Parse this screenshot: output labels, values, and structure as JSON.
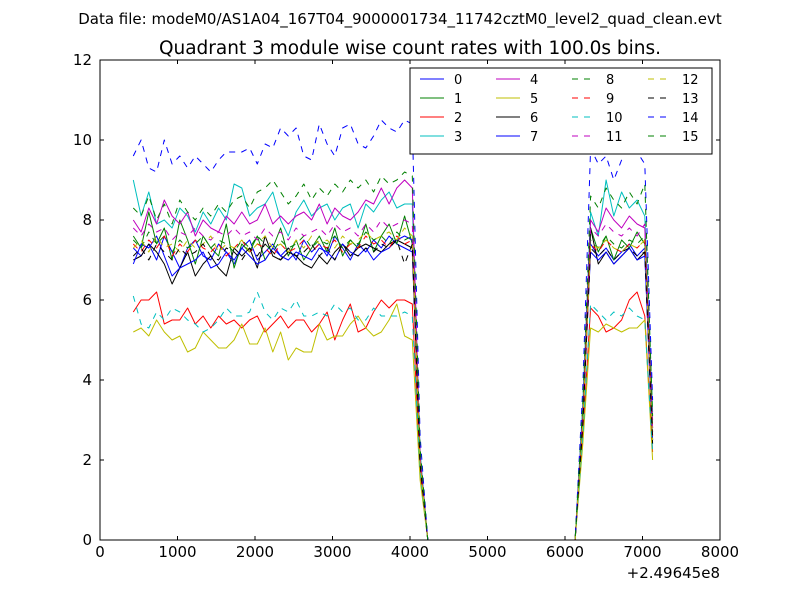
{
  "chart_data": {
    "type": "line",
    "suptitle": "Data file: modeM0/AS1A04_167T04_9000001734_11742cztM0_level2_quad_clean.evt",
    "title": "Quadrant 3 module wise count rates with 100.0s bins.",
    "xlabel": "",
    "ylabel": "",
    "x_offset_label": "+2.49645e8",
    "xlim": [
      0,
      8000
    ],
    "ylim": [
      0,
      12
    ],
    "x_ticks": [
      0,
      1000,
      2000,
      3000,
      4000,
      5000,
      6000,
      7000,
      8000
    ],
    "y_ticks": [
      0,
      2,
      4,
      6,
      8,
      10,
      12
    ],
    "grid": false,
    "legend": {
      "position": "top-right",
      "columns": 4
    },
    "x": [
      430,
      530,
      630,
      730,
      830,
      930,
      1030,
      1130,
      1230,
      1330,
      1430,
      1530,
      1630,
      1730,
      1830,
      1930,
      2030,
      2130,
      2230,
      2330,
      2430,
      2530,
      2630,
      2730,
      2830,
      2930,
      3030,
      3130,
      3230,
      3330,
      3430,
      3530,
      3630,
      3730,
      3830,
      3930,
      4030,
      4130,
      4230,
      6130,
      6230,
      6330,
      6430,
      6530,
      6630,
      6730,
      6830,
      6930,
      7030,
      7130
    ],
    "series": [
      {
        "name": "0",
        "color": "#0000ff",
        "dash": "solid",
        "values": [
          7.3,
          7.1,
          7.4,
          7.0,
          7.6,
          7.2,
          6.8,
          7.3,
          7.5,
          7.1,
          7.0,
          7.4,
          7.2,
          6.9,
          7.3,
          7.5,
          7.0,
          7.2,
          7.4,
          7.1,
          7.3,
          7.0,
          7.5,
          7.2,
          7.4,
          7.1,
          7.6,
          7.3,
          7.0,
          7.4,
          7.2,
          7.5,
          7.3,
          7.6,
          7.4,
          7.3,
          7.2,
          2.0,
          0,
          0,
          3.0,
          7.4,
          7.1,
          7.3,
          7.0,
          7.2,
          7.4,
          7.1,
          7.3,
          2.5
        ]
      },
      {
        "name": "1",
        "color": "#008000",
        "dash": "solid",
        "values": [
          7.6,
          7.3,
          8.2,
          7.4,
          7.8,
          7.0,
          8.0,
          7.5,
          6.9,
          7.6,
          7.3,
          7.1,
          7.9,
          6.8,
          7.4,
          7.2,
          7.6,
          7.0,
          7.3,
          7.8,
          7.1,
          7.5,
          7.0,
          7.3,
          7.6,
          7.2,
          7.8,
          7.1,
          7.5,
          7.3,
          7.9,
          7.2,
          7.6,
          7.9,
          7.4,
          8.1,
          7.4,
          1.8,
          0,
          0,
          3.0,
          7.8,
          7.2,
          7.6,
          7.0,
          7.5,
          7.3,
          7.7,
          7.4,
          2.8
        ]
      },
      {
        "name": "2",
        "color": "#ff0000",
        "dash": "solid",
        "values": [
          5.7,
          6.0,
          6.0,
          6.2,
          5.4,
          5.5,
          5.5,
          5.8,
          5.4,
          5.6,
          5.3,
          5.6,
          5.4,
          5.5,
          5.3,
          5.5,
          5.6,
          5.2,
          5.4,
          5.6,
          5.3,
          5.5,
          5.5,
          5.2,
          5.4,
          5.7,
          5.0,
          5.5,
          5.9,
          5.2,
          5.3,
          5.7,
          6.0,
          5.8,
          6.0,
          6.0,
          5.9,
          1.7,
          0,
          0,
          2.6,
          5.8,
          5.6,
          5.2,
          5.3,
          5.5,
          6.0,
          6.2,
          5.6,
          2.2
        ]
      },
      {
        "name": "3",
        "color": "#00bfbf",
        "dash": "solid",
        "values": [
          9.0,
          8.1,
          8.7,
          7.9,
          8.0,
          7.8,
          8.3,
          8.1,
          7.7,
          8.2,
          7.9,
          8.3,
          8.0,
          8.9,
          8.8,
          8.1,
          8.3,
          8.4,
          8.7,
          8.0,
          7.6,
          8.2,
          8.5,
          8.1,
          8.3,
          8.4,
          8.0,
          8.3,
          8.4,
          7.8,
          8.4,
          8.2,
          8.5,
          8.7,
          8.3,
          8.4,
          8.4,
          2.2,
          0,
          0,
          3.4,
          8.2,
          7.6,
          9.0,
          8.1,
          8.7,
          8.3,
          8.5,
          8.1,
          3.2
        ]
      },
      {
        "name": "4",
        "color": "#bf00bf",
        "dash": "solid",
        "values": [
          8.0,
          7.7,
          8.3,
          7.9,
          8.5,
          8.1,
          7.9,
          8.2,
          7.6,
          8.0,
          7.8,
          7.7,
          8.1,
          7.9,
          8.2,
          7.9,
          8.0,
          8.4,
          7.9,
          8.1,
          7.9,
          8.1,
          8.2,
          8.0,
          8.4,
          7.9,
          8.3,
          8.1,
          8.0,
          8.2,
          8.5,
          8.4,
          8.8,
          8.4,
          8.8,
          9.0,
          8.8,
          2.1,
          0,
          0,
          3.2,
          8.0,
          7.7,
          8.3,
          8.0,
          7.8,
          8.1,
          7.9,
          7.8,
          3.0
        ]
      },
      {
        "name": "5",
        "color": "#bfbf00",
        "dash": "solid",
        "values": [
          5.2,
          5.3,
          5.1,
          5.5,
          5.2,
          5.0,
          5.1,
          4.7,
          4.8,
          5.2,
          5.0,
          4.8,
          4.8,
          5.0,
          5.4,
          4.9,
          4.9,
          5.3,
          4.7,
          5.2,
          4.5,
          4.8,
          4.7,
          4.7,
          5.4,
          5.0,
          5.1,
          5.1,
          5.4,
          5.6,
          5.3,
          5.1,
          5.2,
          5.5,
          5.9,
          5.1,
          5.0,
          1.5,
          0,
          0,
          2.4,
          5.3,
          5.2,
          5.4,
          5.3,
          5.2,
          5.3,
          5.3,
          5.5,
          2.0
        ]
      },
      {
        "name": "6",
        "color": "#000000",
        "dash": "solid",
        "values": [
          7.0,
          7.1,
          7.4,
          7.2,
          6.9,
          6.4,
          6.8,
          7.2,
          6.6,
          6.9,
          7.1,
          6.8,
          6.6,
          7.3,
          7.1,
          7.3,
          6.8,
          7.6,
          7.1,
          7.0,
          7.2,
          7.1,
          6.9,
          6.8,
          7.1,
          6.9,
          7.2,
          7.4,
          7.1,
          7.3,
          7.4,
          7.3,
          7.2,
          7.4,
          7.5,
          7.4,
          7.3,
          1.9,
          0,
          0,
          3.0,
          7.8,
          6.9,
          7.2,
          6.9,
          7.1,
          7.3,
          7.0,
          7.2,
          2.4
        ]
      },
      {
        "name": "7",
        "color": "#0000ff",
        "dash": "solid",
        "values": [
          6.9,
          7.4,
          7.3,
          7.6,
          7.1,
          6.6,
          6.8,
          6.9,
          7.0,
          7.2,
          6.8,
          6.9,
          7.2,
          7.0,
          7.3,
          7.1,
          6.9,
          7.0,
          7.3,
          7.1,
          7.0,
          7.2,
          7.1,
          7.0,
          7.3,
          7.2,
          7.0,
          7.4,
          7.2,
          7.1,
          7.3,
          7.0,
          7.2,
          7.3,
          7.5,
          7.6,
          7.5,
          1.9,
          0,
          0,
          3.0,
          7.2,
          7.0,
          7.2,
          6.9,
          7.1,
          7.3,
          7.0,
          7.1,
          2.5
        ]
      },
      {
        "name": "8",
        "color": "#008000",
        "dash": "dashed",
        "values": [
          7.5,
          7.3,
          7.7,
          7.4,
          7.6,
          7.2,
          7.5,
          7.3,
          7.4,
          7.6,
          7.3,
          7.5,
          7.4,
          7.2,
          7.5,
          7.3,
          7.6,
          7.4,
          7.2,
          7.5,
          7.3,
          7.4,
          7.6,
          7.3,
          7.5,
          7.4,
          7.6,
          7.3,
          7.5,
          7.4,
          7.7,
          7.5,
          7.6,
          7.4,
          7.7,
          7.5,
          7.6,
          1.9,
          0,
          0,
          3.0,
          7.5,
          7.3,
          7.6,
          7.4,
          7.3,
          7.5,
          7.4,
          7.6,
          2.7
        ]
      },
      {
        "name": "9",
        "color": "#ff0000",
        "dash": "dashed",
        "values": [
          7.4,
          7.2,
          7.5,
          7.3,
          7.6,
          7.1,
          7.4,
          7.2,
          7.5,
          7.3,
          7.2,
          7.4,
          7.1,
          7.3,
          7.5,
          7.2,
          7.4,
          7.3,
          7.1,
          7.4,
          7.2,
          7.3,
          7.5,
          7.2,
          7.4,
          7.3,
          7.5,
          7.2,
          7.4,
          7.3,
          7.6,
          7.4,
          7.5,
          7.3,
          7.6,
          7.4,
          7.5,
          1.9,
          0,
          0,
          2.9,
          7.4,
          7.2,
          7.5,
          7.3,
          7.2,
          7.4,
          7.3,
          7.5,
          2.6
        ]
      },
      {
        "name": "10",
        "color": "#00bfbf",
        "dash": "dashed",
        "values": [
          6.1,
          5.4,
          5.3,
          5.7,
          5.5,
          5.8,
          5.7,
          5.5,
          5.4,
          5.2,
          5.3,
          5.5,
          5.8,
          5.6,
          5.6,
          5.7,
          6.2,
          5.7,
          5.5,
          5.8,
          5.7,
          6.0,
          5.6,
          5.6,
          5.7,
          5.6,
          5.9,
          5.7,
          5.8,
          5.5,
          5.5,
          5.8,
          5.6,
          5.6,
          5.6,
          5.7,
          5.6,
          1.7,
          0,
          0,
          2.6,
          5.9,
          5.7,
          5.5,
          5.7,
          5.6,
          5.8,
          5.6,
          5.5,
          2.2
        ]
      },
      {
        "name": "11",
        "color": "#bf00bf",
        "dash": "dashed",
        "values": [
          7.8,
          7.6,
          7.9,
          7.7,
          7.8,
          7.5,
          7.7,
          7.6,
          7.8,
          7.6,
          7.5,
          7.7,
          7.6,
          7.8,
          7.6,
          7.7,
          7.5,
          7.8,
          7.6,
          7.7,
          7.5,
          7.8,
          7.6,
          7.7,
          7.8,
          7.6,
          7.9,
          7.7,
          7.8,
          7.6,
          7.9,
          7.7,
          8.0,
          7.8,
          7.9,
          8.0,
          7.9,
          2.0,
          0,
          0,
          3.1,
          7.8,
          7.6,
          7.9,
          7.7,
          7.6,
          7.8,
          7.6,
          7.9,
          2.8
        ]
      },
      {
        "name": "12",
        "color": "#bfbf00",
        "dash": "dashed",
        "values": [
          7.3,
          7.5,
          7.2,
          7.6,
          7.3,
          7.4,
          7.2,
          7.5,
          7.3,
          7.4,
          7.6,
          7.2,
          7.4,
          7.3,
          7.5,
          7.2,
          7.4,
          7.6,
          7.3,
          7.4,
          7.2,
          7.5,
          7.3,
          7.6,
          7.4,
          7.5,
          7.3,
          7.6,
          7.4,
          7.5,
          7.7,
          7.5,
          7.6,
          7.7,
          7.5,
          7.8,
          7.6,
          1.9,
          0,
          0,
          2.9,
          7.4,
          7.3,
          7.5,
          7.3,
          7.2,
          7.4,
          7.3,
          7.5,
          2.5
        ]
      },
      {
        "name": "13",
        "color": "#000000",
        "dash": "dashed",
        "values": [
          7.1,
          7.3,
          7.0,
          7.4,
          7.2,
          7.0,
          7.3,
          7.1,
          7.2,
          7.4,
          7.1,
          7.0,
          7.3,
          7.2,
          7.0,
          7.3,
          7.1,
          7.4,
          7.2,
          7.0,
          7.3,
          7.1,
          7.2,
          7.4,
          7.1,
          7.3,
          7.0,
          7.4,
          7.2,
          7.1,
          7.3,
          7.2,
          7.4,
          7.3,
          7.5,
          6.9,
          7.4,
          1.9,
          0,
          0,
          2.9,
          7.3,
          7.1,
          7.3,
          7.0,
          7.2,
          7.3,
          7.1,
          7.2,
          2.5
        ]
      },
      {
        "name": "14",
        "color": "#0000ff",
        "dash": "dashed",
        "values": [
          9.6,
          10.0,
          9.3,
          9.2,
          10.0,
          9.4,
          9.6,
          9.3,
          9.6,
          9.4,
          9.2,
          9.5,
          9.7,
          9.7,
          9.7,
          9.8,
          9.4,
          9.9,
          9.8,
          10.3,
          10.1,
          10.3,
          9.6,
          9.5,
          10.4,
          9.9,
          9.6,
          10.3,
          10.4,
          9.9,
          9.8,
          10.1,
          10.5,
          10.3,
          10.2,
          10.5,
          10.4,
          2.6,
          0,
          0,
          3.8,
          9.8,
          9.4,
          9.6,
          9.0,
          9.5,
          10.0,
          9.7,
          9.4,
          3.5
        ]
      },
      {
        "name": "15",
        "color": "#008000",
        "dash": "dashed",
        "values": [
          8.3,
          8.1,
          8.6,
          8.0,
          8.4,
          7.9,
          8.5,
          8.2,
          8.0,
          8.3,
          8.1,
          8.4,
          8.2,
          8.5,
          8.6,
          8.3,
          8.7,
          8.8,
          9.0,
          8.7,
          8.4,
          8.6,
          8.9,
          8.5,
          8.8,
          8.6,
          8.9,
          8.7,
          9.0,
          8.8,
          9.0,
          8.7,
          9.1,
          8.9,
          9.0,
          9.2,
          9.1,
          2.3,
          0,
          0,
          3.4,
          8.6,
          8.3,
          8.8,
          8.5,
          8.3,
          8.7,
          8.4,
          8.9,
          3.1
        ]
      }
    ]
  }
}
